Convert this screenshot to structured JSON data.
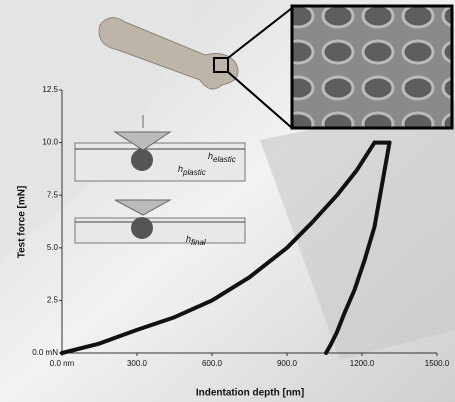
{
  "chart_data": {
    "type": "line",
    "x_label": "Indentation depth [nm]",
    "y_label": "Test force [mN]",
    "xlim": [
      0,
      1500
    ],
    "ylim": [
      0,
      12.5
    ],
    "xticks": [
      {
        "value": 0,
        "label": "0.0 nm"
      },
      {
        "value": 300,
        "label": "300.0"
      },
      {
        "value": 600,
        "label": "600.0"
      },
      {
        "value": 900,
        "label": "900.0"
      },
      {
        "value": 1200,
        "label": "1200.0"
      },
      {
        "value": 1500,
        "label": "1500.0"
      }
    ],
    "yticks": [
      {
        "value": 0,
        "label": "0.0 mN"
      },
      2.5,
      {
        "value": 5,
        "label": "5.0"
      },
      7.5,
      {
        "value": 10,
        "label": "10.0"
      },
      12.5
    ],
    "series": [
      {
        "color": "#111111",
        "x": [
          0,
          150,
          300,
          450,
          600,
          750,
          900,
          1000,
          1100,
          1180,
          1250
        ],
        "values": [
          0,
          0.45,
          1.1,
          1.7,
          2.5,
          3.6,
          5.0,
          6.2,
          7.5,
          8.7,
          10
        ]
      },
      {
        "color": "#111111",
        "x": [
          1250,
          1310
        ],
        "values": [
          10,
          10
        ]
      },
      {
        "color": "#111111",
        "x": [
          1310,
          1280,
          1250,
          1210,
          1170,
          1130,
          1100,
          1075,
          1056
        ],
        "values": [
          10,
          8,
          6,
          4.4,
          3,
          1.9,
          1,
          0.4,
          0
        ]
      }
    ],
    "annotations": [
      {
        "symbol": "h",
        "subscript": "plastic"
      },
      {
        "symbol": "h",
        "subscript": "elastic"
      },
      {
        "symbol": "h",
        "subscript": "final"
      }
    ]
  }
}
